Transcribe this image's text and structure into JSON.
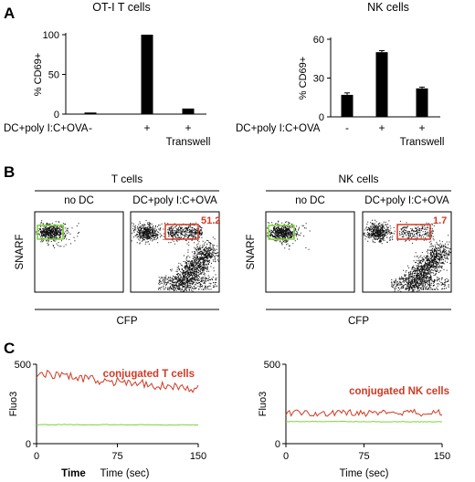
{
  "panels": {
    "a": "A",
    "b": "B",
    "c": "C"
  },
  "chart_data": [
    {
      "id": "otI_bar",
      "type": "bar",
      "title": "OT-I T cells",
      "ylabel": "% CD69+",
      "ylim": [
        0,
        100
      ],
      "yticks": [
        0,
        50,
        100
      ],
      "categories": [
        "-",
        "+",
        "+"
      ],
      "category_sublabels": [
        "",
        "",
        "Transwell"
      ],
      "row_label": "DC+poly I:C+OVA",
      "values": [
        2,
        100,
        7
      ],
      "errors": [
        0,
        0,
        0
      ],
      "bar_color": "#000000"
    },
    {
      "id": "nk_bar",
      "type": "bar",
      "title": "NK cells",
      "ylabel": "% CD69+",
      "ylim": [
        0,
        60
      ],
      "yticks": [
        0,
        30,
        60
      ],
      "categories": [
        "-",
        "+",
        "+"
      ],
      "category_sublabels": [
        "",
        "",
        "Transwell"
      ],
      "row_label": "DC+poly I:C+OVA",
      "values": [
        17,
        50,
        22
      ],
      "errors": [
        1.5,
        1.2,
        1.0
      ],
      "bar_color": "#000000"
    },
    {
      "id": "t_flow",
      "type": "scatter",
      "group_title": "T cells",
      "xlabel": "CFP",
      "ylabel": "SNARF",
      "panels": [
        {
          "label": "no DC",
          "gate_value": ""
        },
        {
          "label": "DC+poly I:C+OVA",
          "gate_value": "51.2"
        }
      ]
    },
    {
      "id": "nk_flow",
      "type": "scatter",
      "group_title": "NK cells",
      "xlabel": "CFP",
      "ylabel": "SNARF",
      "panels": [
        {
          "label": "no DC",
          "gate_value": ""
        },
        {
          "label": "DC+poly I:C+OVA",
          "gate_value": "1.7"
        }
      ]
    },
    {
      "id": "t_fluo",
      "type": "line",
      "xlabel": "Time (sec)",
      "xlabel_prefix": "Time",
      "ylabel": "Fluo3",
      "xlim": [
        0,
        150
      ],
      "ylim": [
        0,
        500
      ],
      "xticks": [
        0,
        75,
        150
      ],
      "yticks": [
        0,
        500
      ],
      "series": [
        {
          "name": "conjugated T cells",
          "color": "#d03a24",
          "x_start": 0,
          "x_end": 150,
          "start": 440,
          "end": 340,
          "noise": 28
        },
        {
          "name": "",
          "color": "#7fd33c",
          "x_start": 0,
          "x_end": 150,
          "start": 120,
          "end": 118,
          "noise": 2
        }
      ]
    },
    {
      "id": "nk_fluo",
      "type": "line",
      "xlabel": "Time (sec)",
      "ylabel": "Fluo3",
      "xlim": [
        0,
        150
      ],
      "ylim": [
        0,
        500
      ],
      "xticks": [
        0,
        75,
        150
      ],
      "yticks": [
        0,
        500
      ],
      "series": [
        {
          "name": "conjugated NK cells",
          "color": "#d03a24",
          "x_start": 0,
          "x_end": 150,
          "start": 190,
          "end": 195,
          "noise": 22
        },
        {
          "name": "",
          "color": "#7fd33c",
          "x_start": 0,
          "x_end": 150,
          "start": 140,
          "end": 138,
          "noise": 2
        }
      ]
    }
  ]
}
